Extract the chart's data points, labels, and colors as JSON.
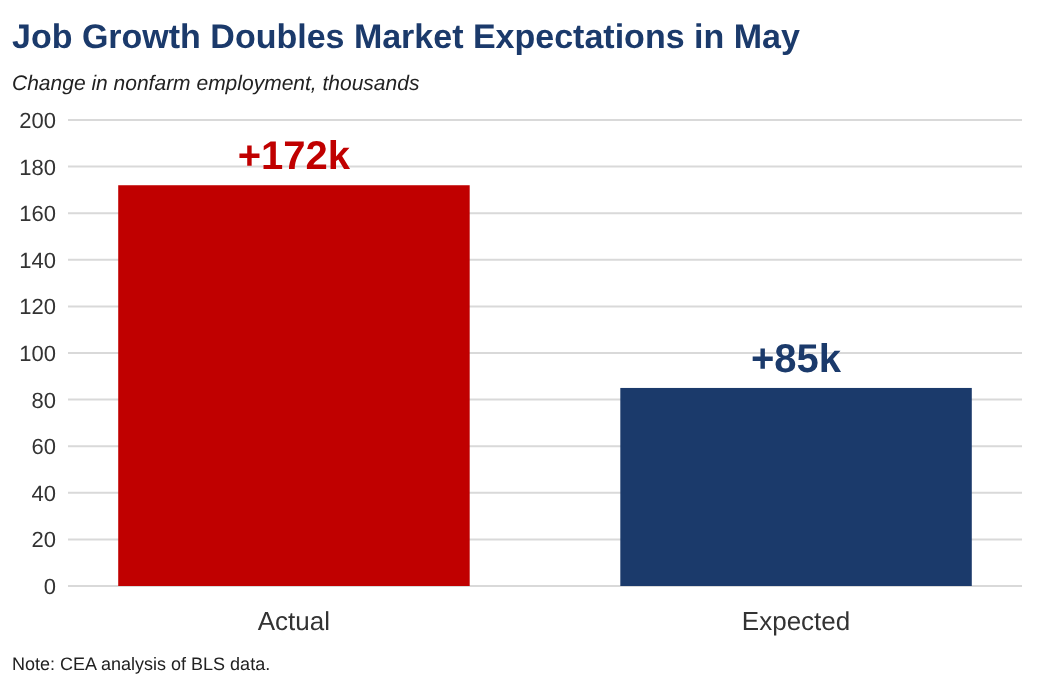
{
  "chart_data": {
    "type": "bar",
    "title": "Job Growth Doubles Market Expectations in May",
    "subtitle": "Change in nonfarm employment, thousands",
    "categories": [
      "Actual",
      "Expected"
    ],
    "values": [
      172,
      85
    ],
    "colors": [
      "#c00000",
      "#1b3a6b"
    ],
    "value_labels": [
      "+172k",
      "+85k"
    ],
    "ylim": [
      0,
      200
    ],
    "yticks": [
      0,
      20,
      40,
      60,
      80,
      100,
      120,
      140,
      160,
      180,
      200
    ],
    "grid": "y",
    "annotations": [
      "Note: CEA analysis of BLS data."
    ]
  }
}
